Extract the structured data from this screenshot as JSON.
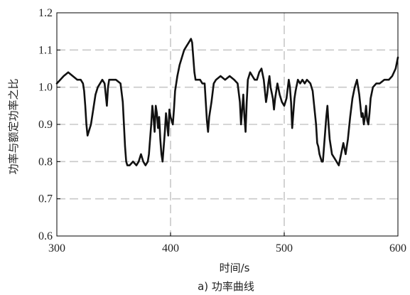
{
  "caption": "a) 功率曲线",
  "chart_data": {
    "type": "line",
    "title": "",
    "xlabel": "时间/s",
    "ylabel": "功率与额定功率之比",
    "xlim": [
      300,
      600
    ],
    "ylim": [
      0.6,
      1.2
    ],
    "xticks": [
      300,
      400,
      500,
      600
    ],
    "yticks": [
      0.6,
      0.7,
      0.8,
      0.9,
      1.0,
      1.1,
      1.2
    ],
    "grid": true,
    "legend": "none",
    "series": [
      {
        "color": "#111111",
        "x": [
          300,
          303,
          306,
          310,
          314,
          318,
          321,
          323,
          324,
          325,
          326,
          327,
          328,
          330,
          332,
          334,
          336,
          338,
          340,
          342,
          343,
          344,
          345,
          346,
          347,
          349,
          352,
          356,
          358,
          359,
          360,
          361,
          362,
          364,
          367,
          370,
          372,
          374,
          376,
          378,
          380,
          381,
          382,
          383,
          384,
          385,
          386,
          387,
          388,
          389,
          390,
          391,
          392,
          393,
          394,
          395,
          396,
          397,
          398,
          399,
          400,
          402,
          403,
          404,
          406,
          408,
          410,
          412,
          414,
          416,
          418,
          419,
          420,
          421,
          422,
          424,
          426,
          428,
          430,
          431,
          432,
          433,
          434,
          436,
          438,
          440,
          444,
          448,
          452,
          456,
          459,
          461,
          462,
          463,
          464,
          465,
          466,
          467,
          468,
          470,
          472,
          474,
          476,
          478,
          480,
          482,
          483,
          484,
          485,
          486,
          487,
          488,
          490,
          491,
          492,
          493,
          494,
          496,
          498,
          500,
          502,
          504,
          505,
          506,
          507,
          508,
          509,
          510,
          512,
          514,
          516,
          518,
          520,
          523,
          525,
          526,
          527,
          528,
          529,
          530,
          531,
          532,
          533,
          534,
          535,
          536,
          537,
          538,
          539,
          540,
          542,
          544,
          546,
          548,
          550,
          552,
          554,
          556,
          558,
          560,
          562,
          564,
          566,
          567,
          568,
          569,
          570,
          571,
          572,
          573,
          574,
          575,
          576,
          578,
          581,
          584,
          588,
          592,
          595,
          598,
          600
        ],
        "values": [
          1.01,
          1.02,
          1.03,
          1.04,
          1.03,
          1.02,
          1.02,
          1.01,
          0.99,
          0.95,
          0.9,
          0.87,
          0.88,
          0.9,
          0.94,
          0.98,
          1.0,
          1.01,
          1.02,
          1.01,
          0.98,
          0.95,
          1.0,
          1.02,
          1.02,
          1.02,
          1.02,
          1.01,
          0.96,
          0.9,
          0.84,
          0.8,
          0.79,
          0.79,
          0.8,
          0.79,
          0.8,
          0.82,
          0.8,
          0.79,
          0.8,
          0.82,
          0.86,
          0.9,
          0.95,
          0.92,
          0.88,
          0.95,
          0.93,
          0.89,
          0.92,
          0.86,
          0.82,
          0.8,
          0.84,
          0.88,
          0.93,
          0.9,
          0.87,
          0.94,
          0.92,
          0.9,
          0.94,
          0.99,
          1.03,
          1.06,
          1.08,
          1.1,
          1.11,
          1.12,
          1.13,
          1.12,
          1.08,
          1.04,
          1.02,
          1.02,
          1.02,
          1.01,
          1.01,
          0.96,
          0.91,
          0.88,
          0.92,
          0.96,
          1.01,
          1.02,
          1.03,
          1.02,
          1.03,
          1.02,
          1.01,
          0.96,
          0.9,
          0.94,
          0.98,
          0.92,
          0.88,
          0.96,
          1.02,
          1.04,
          1.03,
          1.02,
          1.02,
          1.04,
          1.05,
          1.02,
          0.99,
          0.96,
          0.98,
          1.01,
          1.03,
          1.0,
          0.97,
          0.94,
          0.97,
          0.99,
          1.01,
          0.98,
          0.96,
          0.95,
          0.97,
          1.02,
          1.0,
          0.96,
          0.89,
          0.93,
          0.97,
          0.99,
          1.02,
          1.01,
          1.02,
          1.01,
          1.02,
          1.01,
          0.99,
          0.96,
          0.93,
          0.9,
          0.85,
          0.84,
          0.82,
          0.81,
          0.8,
          0.8,
          0.84,
          0.88,
          0.92,
          0.95,
          0.9,
          0.86,
          0.82,
          0.81,
          0.8,
          0.79,
          0.82,
          0.85,
          0.82,
          0.86,
          0.92,
          0.97,
          1.0,
          1.02,
          0.98,
          0.95,
          0.92,
          0.93,
          0.9,
          0.92,
          0.95,
          0.91,
          0.9,
          0.93,
          0.97,
          1.0,
          1.01,
          1.01,
          1.02,
          1.02,
          1.03,
          1.05,
          1.08
        ]
      }
    ]
  }
}
